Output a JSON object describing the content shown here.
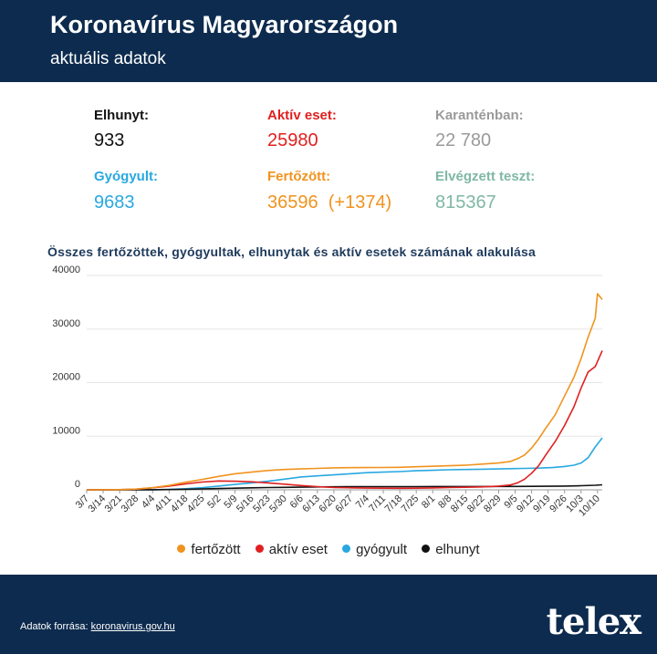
{
  "header": {
    "title": "Koronavírus Magyarországon",
    "subtitle": "aktuális adatok"
  },
  "stats": [
    {
      "label": "Elhunyt:",
      "value": "933",
      "color": "#111111",
      "label_color": "#111111"
    },
    {
      "label": "Aktív eset:",
      "value": "25980",
      "color": "#e02020",
      "label_color": "#e02020"
    },
    {
      "label": "Karanténban:",
      "value": "22 780",
      "color": "#9a9a9a",
      "label_color": "#9a9a9a"
    },
    {
      "label": "Gyógyult:",
      "value": "9683",
      "color": "#29a8e0",
      "label_color": "#29a8e0"
    },
    {
      "label": "Fertőzött:",
      "value": "36596  (+1374)",
      "color": "#f0931e",
      "label_color": "#f0931e"
    },
    {
      "label": "Elvégzett teszt:",
      "value": "815367",
      "color": "#7fb8a4",
      "label_color": "#7fb8a4"
    }
  ],
  "chart_data": {
    "type": "line",
    "title": "Összes fertőzöttek, gyógyultak, elhunytak és aktív esetek számának alakulása",
    "ylim": [
      0,
      40000
    ],
    "yticks": [
      0,
      10000,
      20000,
      30000,
      40000
    ],
    "xlim": [
      0,
      217
    ],
    "xticks": [
      "3/7",
      "3/14",
      "3/21",
      "3/28",
      "4/4",
      "4/11",
      "4/18",
      "4/25",
      "5/2",
      "5/9",
      "5/16",
      "5/23",
      "5/30",
      "6/6",
      "6/13",
      "6/20",
      "6/27",
      "7/4",
      "7/11",
      "7/18",
      "7/25",
      "8/1",
      "8/8",
      "8/15",
      "8/22",
      "8/29",
      "9/5",
      "9/12",
      "9/19",
      "9/26",
      "10/3",
      "10/10"
    ],
    "grid": true,
    "legend": "bottom",
    "series": [
      {
        "name": "fertőzött",
        "color": "#f0931e",
        "points": [
          [
            0,
            0
          ],
          [
            14,
            40
          ],
          [
            21,
            131
          ],
          [
            28,
            400
          ],
          [
            35,
            817
          ],
          [
            42,
            1410
          ],
          [
            49,
            1916
          ],
          [
            56,
            2500
          ],
          [
            63,
            3000
          ],
          [
            70,
            3300
          ],
          [
            77,
            3600
          ],
          [
            84,
            3800
          ],
          [
            91,
            3900
          ],
          [
            98,
            4000
          ],
          [
            105,
            4100
          ],
          [
            112,
            4130
          ],
          [
            119,
            4150
          ],
          [
            126,
            4170
          ],
          [
            133,
            4200
          ],
          [
            140,
            4300
          ],
          [
            147,
            4400
          ],
          [
            154,
            4500
          ],
          [
            161,
            4600
          ],
          [
            168,
            4800
          ],
          [
            175,
            5000
          ],
          [
            180,
            5300
          ],
          [
            183,
            5800
          ],
          [
            186,
            6500
          ],
          [
            189,
            7800
          ],
          [
            192,
            9500
          ],
          [
            195,
            11500
          ],
          [
            199,
            14000
          ],
          [
            203,
            17500
          ],
          [
            207,
            21000
          ],
          [
            210,
            24500
          ],
          [
            213,
            28500
          ],
          [
            216,
            32000
          ],
          [
            219,
            35500
          ],
          [
            217,
            36596
          ]
        ]
      },
      {
        "name": "aktív eset",
        "color": "#e02020",
        "points": [
          [
            0,
            0
          ],
          [
            14,
            35
          ],
          [
            21,
            120
          ],
          [
            28,
            380
          ],
          [
            35,
            700
          ],
          [
            42,
            1100
          ],
          [
            49,
            1450
          ],
          [
            56,
            1650
          ],
          [
            63,
            1600
          ],
          [
            70,
            1500
          ],
          [
            77,
            1300
          ],
          [
            84,
            1050
          ],
          [
            91,
            800
          ],
          [
            98,
            600
          ],
          [
            105,
            450
          ],
          [
            112,
            380
          ],
          [
            119,
            320
          ],
          [
            126,
            300
          ],
          [
            133,
            290
          ],
          [
            140,
            310
          ],
          [
            147,
            350
          ],
          [
            154,
            420
          ],
          [
            161,
            480
          ],
          [
            168,
            550
          ],
          [
            175,
            700
          ],
          [
            180,
            900
          ],
          [
            183,
            1300
          ],
          [
            186,
            2000
          ],
          [
            189,
            3100
          ],
          [
            192,
            4500
          ],
          [
            195,
            6500
          ],
          [
            199,
            9000
          ],
          [
            203,
            12000
          ],
          [
            207,
            15500
          ],
          [
            210,
            19000
          ],
          [
            213,
            22000
          ],
          [
            216,
            23000
          ],
          [
            219,
            25980
          ]
        ]
      },
      {
        "name": "gyógyult",
        "color": "#29a8e0",
        "points": [
          [
            0,
            0
          ],
          [
            21,
            5
          ],
          [
            28,
            20
          ],
          [
            35,
            60
          ],
          [
            42,
            200
          ],
          [
            49,
            400
          ],
          [
            56,
            700
          ],
          [
            63,
            1000
          ],
          [
            70,
            1300
          ],
          [
            77,
            1600
          ],
          [
            84,
            2000
          ],
          [
            91,
            2400
          ],
          [
            98,
            2600
          ],
          [
            105,
            2800
          ],
          [
            112,
            3000
          ],
          [
            119,
            3200
          ],
          [
            126,
            3300
          ],
          [
            133,
            3400
          ],
          [
            140,
            3550
          ],
          [
            147,
            3650
          ],
          [
            154,
            3750
          ],
          [
            161,
            3800
          ],
          [
            168,
            3850
          ],
          [
            175,
            3900
          ],
          [
            180,
            3950
          ],
          [
            186,
            4000
          ],
          [
            192,
            4050
          ],
          [
            198,
            4150
          ],
          [
            203,
            4350
          ],
          [
            207,
            4600
          ],
          [
            210,
            5000
          ],
          [
            213,
            6000
          ],
          [
            216,
            8000
          ],
          [
            219,
            9683
          ]
        ]
      },
      {
        "name": "elhunyt",
        "color": "#111111",
        "points": [
          [
            0,
            0
          ],
          [
            21,
            10
          ],
          [
            28,
            20
          ],
          [
            35,
            50
          ],
          [
            42,
            100
          ],
          [
            49,
            170
          ],
          [
            56,
            240
          ],
          [
            63,
            310
          ],
          [
            70,
            380
          ],
          [
            77,
            420
          ],
          [
            84,
            460
          ],
          [
            91,
            500
          ],
          [
            98,
            540
          ],
          [
            105,
            570
          ],
          [
            112,
            580
          ],
          [
            119,
            590
          ],
          [
            126,
            595
          ],
          [
            133,
            597
          ],
          [
            140,
            598
          ],
          [
            147,
            605
          ],
          [
            154,
            610
          ],
          [
            161,
            613
          ],
          [
            168,
            620
          ],
          [
            175,
            625
          ],
          [
            182,
            628
          ],
          [
            189,
            640
          ],
          [
            196,
            660
          ],
          [
            203,
            700
          ],
          [
            210,
            760
          ],
          [
            216,
            850
          ],
          [
            219,
            933
          ]
        ]
      }
    ]
  },
  "footer": {
    "source_label": "Adatok forrása:",
    "source_link": "koronavirus.gov.hu",
    "logo": "telex"
  }
}
